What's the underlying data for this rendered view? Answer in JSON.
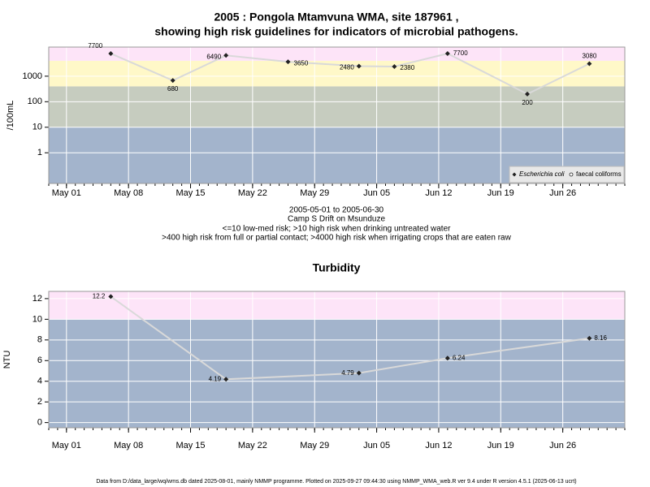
{
  "chart_data": [
    {
      "type": "line",
      "title": [
        "2005 : Pongola Mtamvuna WMA, site 187961 ,",
        "showing high risk guidelines for indicators of microbial pathogens."
      ],
      "subtitle": [
        "2005-05-01 to 2005-06-30",
        "Camp S Drift on Msunduze",
        "<=10 low-med risk; >10 high risk when drinking untreated water",
        ">400 high risk from full or partial contact; >4000 high risk when irrigating crops that are eaten raw"
      ],
      "ylabel": "/100mL",
      "log_y": true,
      "x": [
        "May 06",
        "May 13",
        "May 19",
        "May 26",
        "Jun 03",
        "Jun 07",
        "Jun 13",
        "Jun 22",
        "Jun 29"
      ],
      "xlim": [
        "Apr 29",
        "Jul 03"
      ],
      "xticks": [
        "May 01",
        "May 08",
        "May 15",
        "May 22",
        "May 29",
        "Jun 05",
        "Jun 12",
        "Jun 19",
        "Jun 26"
      ],
      "ylim": [
        0.063,
        13800
      ],
      "yticks": [
        1,
        10,
        100,
        1000
      ],
      "band_breaks": [
        10,
        400,
        4000
      ],
      "band_colors": [
        "#a3b4cc",
        "#c6ccbf",
        "#fff8c8",
        "#fde4f8"
      ],
      "grid": true,
      "legend": "bottom-right",
      "series": [
        {
          "name": "Escherichia coli",
          "color": "#d9d9d9",
          "marker": "diamond",
          "values": [
            7700,
            680,
            6490,
            3650,
            2480,
            2380,
            7700,
            200,
            3080
          ]
        },
        {
          "name": "faecal coliforms",
          "color": "#d9d9d9",
          "marker": "circle"
        }
      ]
    },
    {
      "type": "line",
      "title": "Turbidity",
      "ylabel": "NTU",
      "log_y": false,
      "x": [
        "May 06",
        "May 19",
        "Jun 03",
        "Jun 13",
        "Jun 29"
      ],
      "xlim": [
        "Apr 29",
        "Jul 03"
      ],
      "xticks": [
        "May 01",
        "May 08",
        "May 15",
        "May 22",
        "May 29",
        "Jun 05",
        "Jun 12",
        "Jun 19",
        "Jun 26"
      ],
      "ylim": [
        -0.5,
        12.7
      ],
      "yticks": [
        0,
        2,
        4,
        6,
        8,
        10,
        12
      ],
      "band_breaks": [
        10
      ],
      "band_colors": [
        "#a3b4cc",
        "#fde4f8"
      ],
      "grid": true,
      "series": [
        {
          "name": "Turbidity",
          "color": "#d9d9d9",
          "marker": "diamond",
          "values": [
            12.2,
            4.19,
            4.79,
            6.24,
            8.16
          ]
        }
      ]
    }
  ],
  "footer": "Data from D:/data_large/wq/wms.db dated 2025-08-01, mainly NMMP programme. Plotted on 2025-09-27 09:44:30 using NMMP_WMA_web.R ver 9.4 under R version 4.5.1 (2025-06-13 ucrt)"
}
